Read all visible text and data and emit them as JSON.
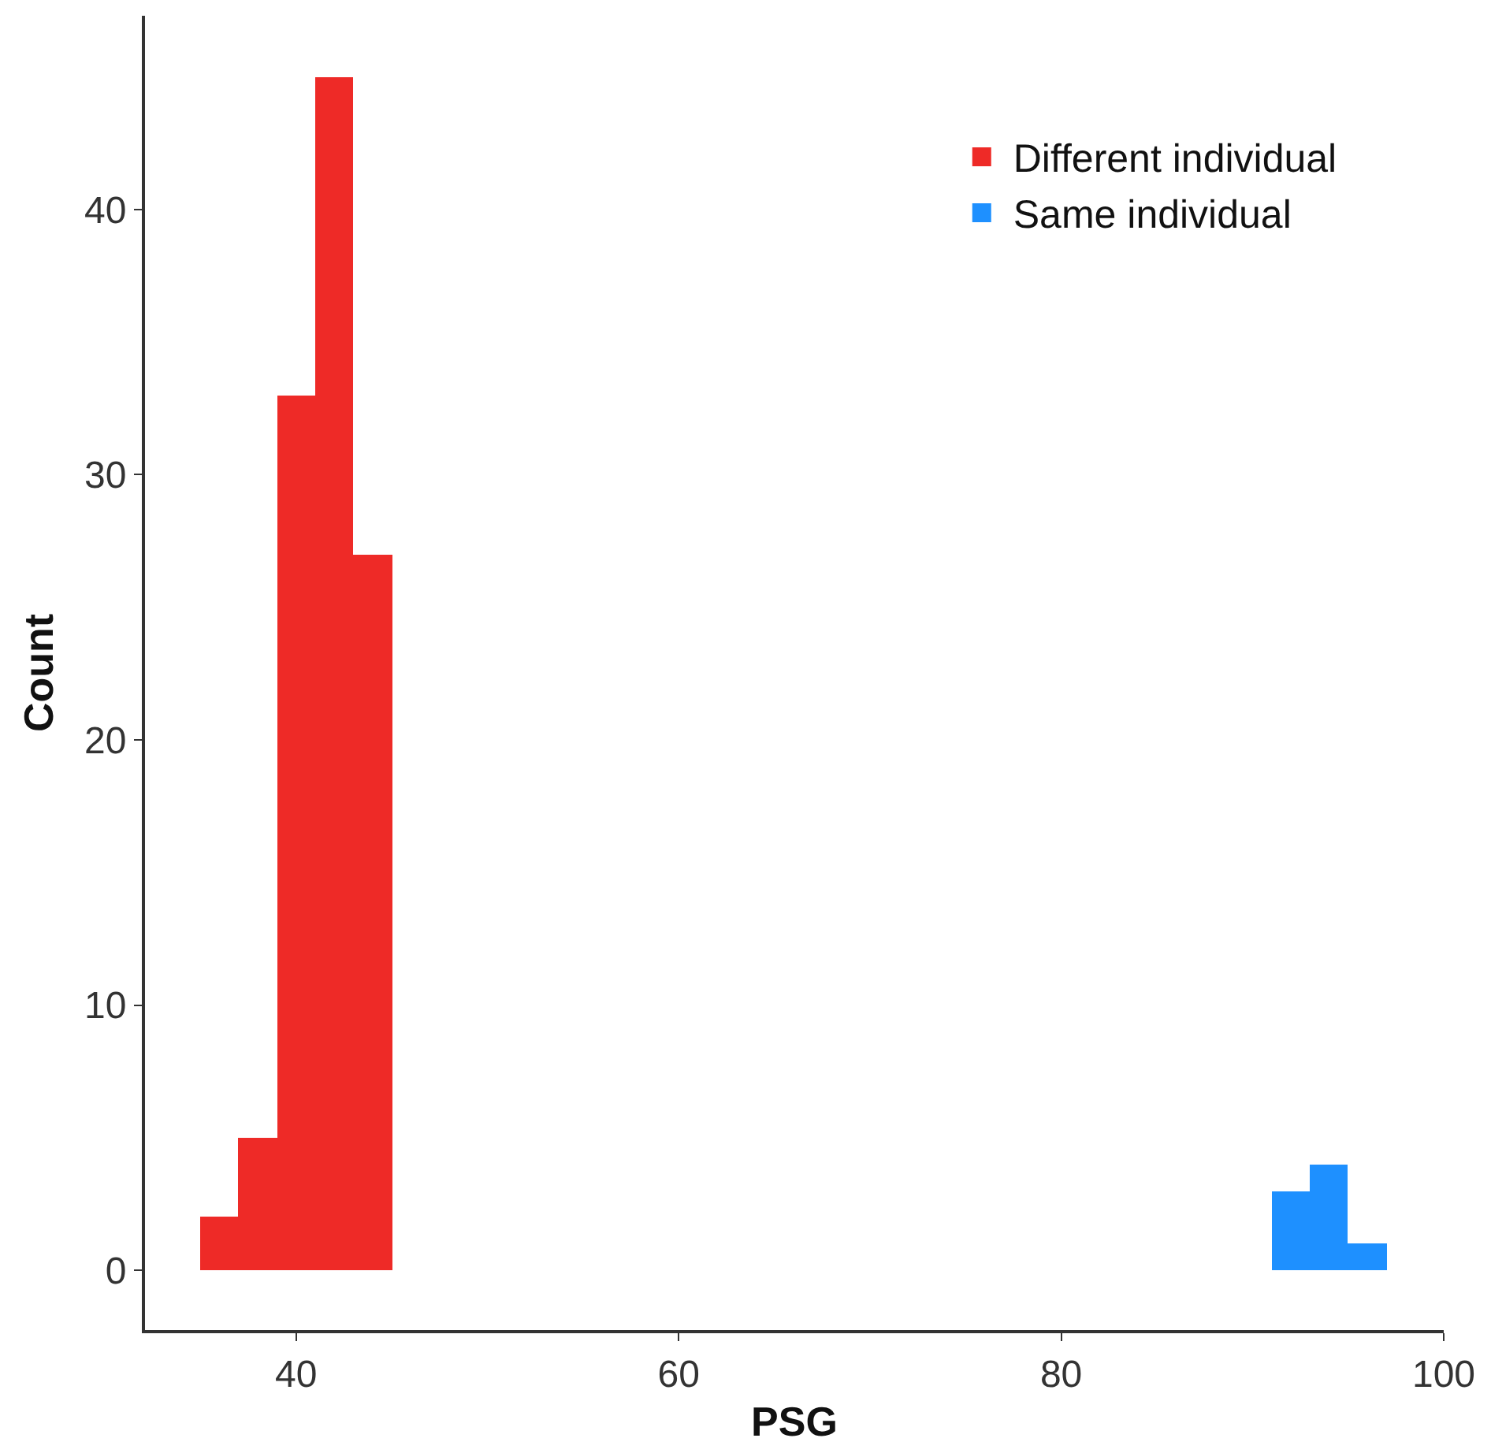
{
  "chart_data": {
    "type": "histogram",
    "xlabel": "PSG",
    "ylabel": "Count",
    "bins": [
      35,
      37,
      39,
      41,
      43,
      45,
      47,
      49,
      51,
      53,
      55,
      57,
      59,
      61,
      63,
      65,
      67,
      69,
      71,
      73,
      75,
      77,
      79,
      81,
      83,
      85,
      87,
      89,
      91,
      93,
      95,
      97
    ],
    "series": [
      {
        "name": "Different individual",
        "color": "#ee2a27",
        "values": [
          2,
          5,
          33,
          45,
          27,
          null,
          null,
          null,
          null,
          null,
          null,
          null,
          null,
          null,
          null,
          null,
          null,
          null,
          null,
          null,
          null,
          null,
          null,
          null,
          null,
          null,
          null,
          null,
          null,
          null,
          null
        ]
      },
      {
        "name": "Same individual",
        "color": "#1e90ff",
        "values": [
          null,
          null,
          null,
          null,
          null,
          null,
          null,
          null,
          null,
          null,
          null,
          null,
          null,
          null,
          null,
          null,
          null,
          null,
          null,
          null,
          null,
          null,
          null,
          null,
          null,
          null,
          null,
          null,
          3,
          4,
          1
        ]
      }
    ],
    "xlim": [
      32.1,
      100
    ],
    "xticks": [
      40,
      60,
      80,
      100
    ],
    "ylim": [
      -2.25,
      47.3
    ],
    "yticks": [
      0,
      10,
      20,
      30,
      40
    ],
    "legend": "top right"
  }
}
